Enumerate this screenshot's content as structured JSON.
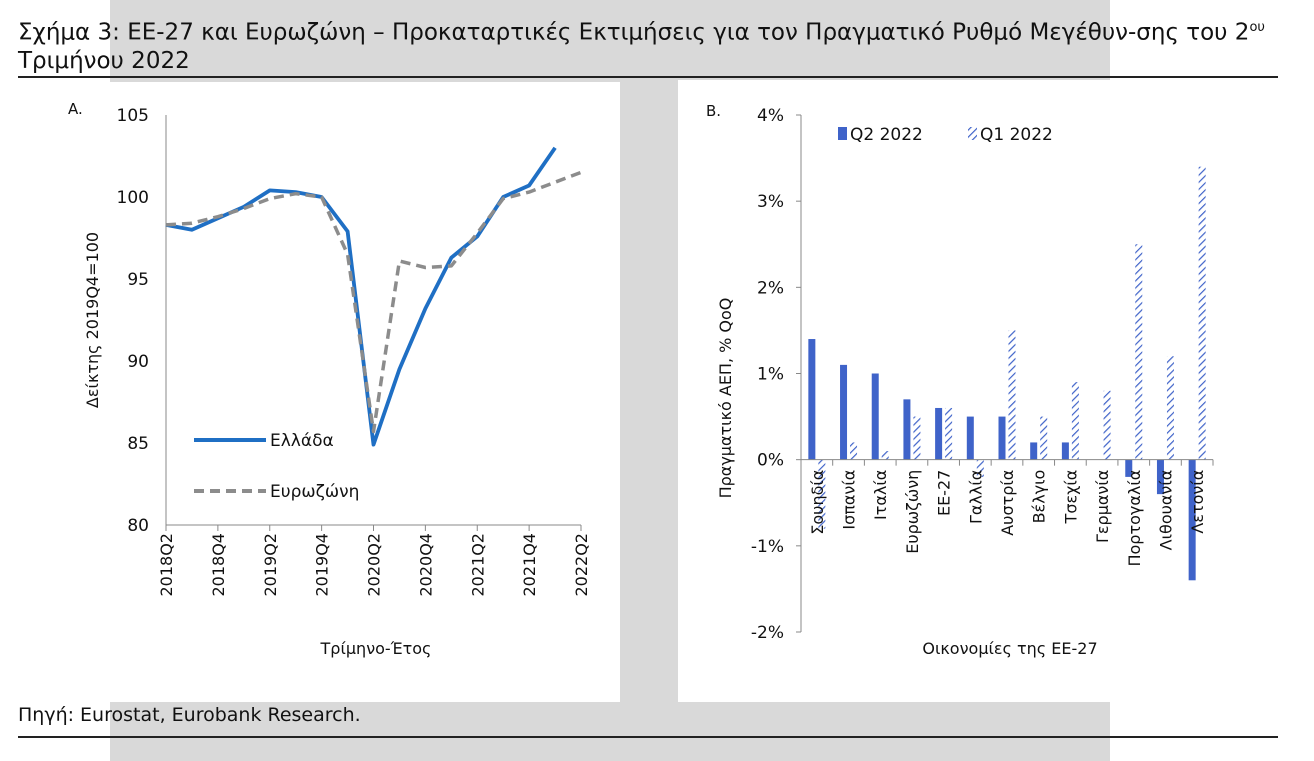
{
  "figure": {
    "title_main": "Σχήμα 3: ΕΕ-27 και Ευρωζώνη – Προκαταρτικές Εκτιμήσεις για τον Πραγματικό Ρυθμό Μεγέθυν-σης του 2",
    "title_sup": "ου",
    "title_end": " Τριμήνου 2022",
    "source": "Πηγή: Eurostat, Eurobank Research."
  },
  "chart_data": [
    {
      "type": "line",
      "panel_label": "A.",
      "title": "",
      "xlabel": "Τρίμηνο-Έτος",
      "ylabel": "Δείκτης 2019Q4=100",
      "ylim": [
        80,
        105
      ],
      "yticks": [
        "105",
        "100",
        "95",
        "90",
        "85",
        "80"
      ],
      "x": [
        "2018Q2",
        "2018Q3",
        "2018Q4",
        "2019Q1",
        "2019Q2",
        "2019Q3",
        "2019Q4",
        "2020Q1",
        "2020Q2",
        "2020Q3",
        "2020Q4",
        "2021Q1",
        "2021Q2",
        "2021Q3",
        "2021Q4",
        "2022Q1",
        "2022Q2"
      ],
      "xtick_labels": [
        "2018Q2",
        "2018Q4",
        "2019Q2",
        "2019Q4",
        "2020Q2",
        "2020Q4",
        "2021Q2",
        "2021Q4",
        "2022Q2"
      ],
      "series": [
        {
          "name": "Ελλάδα",
          "style": "solid",
          "color": "#1f6fc4",
          "values": [
            98.3,
            98.0,
            98.7,
            99.4,
            100.4,
            100.3,
            100.0,
            97.9,
            84.9,
            89.5,
            93.2,
            96.3,
            97.6,
            100.0,
            100.7,
            103.0,
            null
          ]
        },
        {
          "name": "Ευρωζώνη",
          "style": "dashed",
          "color": "#8c8c8c",
          "values": [
            98.3,
            98.4,
            98.8,
            99.3,
            99.9,
            100.2,
            100.0,
            96.5,
            85.7,
            96.1,
            95.7,
            95.8,
            97.8,
            99.9,
            100.3,
            100.9,
            101.5
          ]
        }
      ]
    },
    {
      "type": "bar",
      "panel_label": "B.",
      "title": "",
      "xlabel": "Οικονομίες της ΕΕ-27",
      "ylabel": "Πραγματικό ΑΕΠ, % QoQ",
      "ylim": [
        -2,
        4
      ],
      "yticks": [
        "4%",
        "3%",
        "2%",
        "1%",
        "0%",
        "-1%",
        "-2%"
      ],
      "categories": [
        "Σουηδία",
        "Ισπανία",
        "Ιταλία",
        "Ευρωζώνη",
        "ΕΕ-27",
        "Γαλλία",
        "Αυστρία",
        "Βέλγιο",
        "Τσεχία",
        "Γερμανία",
        "Πορτογαλία",
        "Λιθουανία",
        "Λετονία"
      ],
      "series": [
        {
          "name": "Q2 2022",
          "style": "solid",
          "color": "#3f63c9",
          "values": [
            1.4,
            1.1,
            1.0,
            0.7,
            0.6,
            0.5,
            0.5,
            0.2,
            0.2,
            0.0,
            -0.2,
            -0.4,
            -1.4
          ]
        },
        {
          "name": "Q1 2022",
          "style": "hatched",
          "color": "#3f63c9",
          "values": [
            -0.8,
            0.2,
            0.1,
            0.5,
            0.6,
            -0.2,
            1.5,
            0.5,
            0.9,
            0.8,
            2.5,
            1.2,
            3.4
          ]
        }
      ]
    }
  ]
}
